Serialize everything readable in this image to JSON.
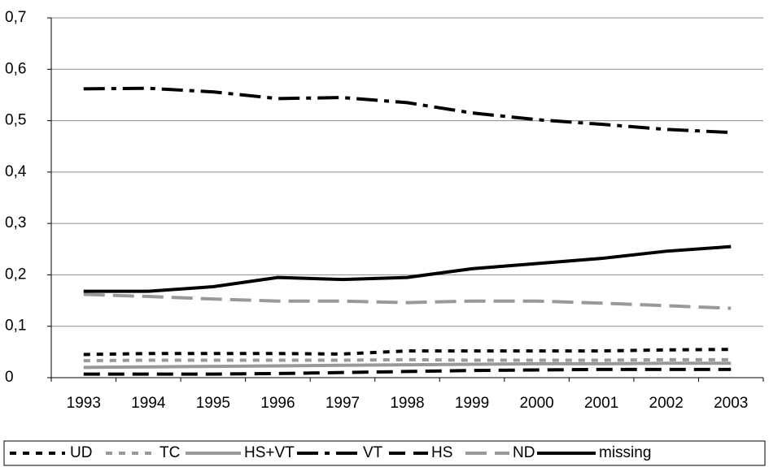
{
  "chart_data": {
    "type": "line",
    "categories": [
      "1993",
      "1994",
      "1995",
      "1996",
      "1997",
      "1998",
      "1999",
      "2000",
      "2001",
      "2002",
      "2003"
    ],
    "series": [
      {
        "name": "UD",
        "color": "#000000",
        "values": [
          0.045,
          0.047,
          0.047,
          0.047,
          0.046,
          0.052,
          0.052,
          0.052,
          0.052,
          0.054,
          0.055
        ]
      },
      {
        "name": "TC",
        "color": "#999999",
        "values": [
          0.033,
          0.034,
          0.034,
          0.034,
          0.034,
          0.035,
          0.034,
          0.034,
          0.034,
          0.035,
          0.035
        ]
      },
      {
        "name": "HS+VT",
        "color": "#999999",
        "values": [
          0.02,
          0.021,
          0.022,
          0.023,
          0.024,
          0.025,
          0.026,
          0.027,
          0.027,
          0.028,
          0.028
        ]
      },
      {
        "name": "VT",
        "color": "#000000",
        "values": [
          0.562,
          0.563,
          0.556,
          0.543,
          0.545,
          0.535,
          0.515,
          0.502,
          0.493,
          0.483,
          0.477
        ]
      },
      {
        "name": "HS",
        "color": "#000000",
        "values": [
          0.007,
          0.007,
          0.007,
          0.008,
          0.01,
          0.012,
          0.014,
          0.015,
          0.016,
          0.016,
          0.016
        ]
      },
      {
        "name": "ND",
        "color": "#999999",
        "values": [
          0.162,
          0.158,
          0.153,
          0.149,
          0.149,
          0.146,
          0.149,
          0.149,
          0.145,
          0.14,
          0.135
        ]
      },
      {
        "name": "missing",
        "color": "#000000",
        "values": [
          0.168,
          0.168,
          0.177,
          0.195,
          0.191,
          0.195,
          0.212,
          0.222,
          0.232,
          0.246,
          0.255
        ]
      }
    ],
    "ylim": [
      0,
      0.7
    ],
    "yticks": [
      0,
      {
        "value": 0.1,
        "label": "0,1"
      },
      {
        "value": 0.2,
        "label": "0,2"
      },
      {
        "value": 0.3,
        "label": "0,3"
      },
      {
        "value": 0.4,
        "label": "0,4"
      },
      {
        "value": 0.5,
        "label": "0,5"
      },
      {
        "value": 0.6,
        "label": "0,6"
      },
      {
        "value": 0.7,
        "label": "0,7"
      }
    ],
    "grid": true,
    "legend": "bottom"
  }
}
